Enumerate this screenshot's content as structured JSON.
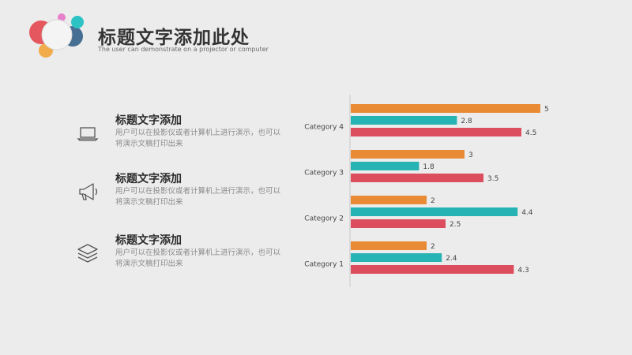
{
  "header": {
    "title": "标题文字添加此处",
    "subtitle": "The user can demonstrate on a projector or computer"
  },
  "items": [
    {
      "heading": "标题文字添加",
      "text": "用户可以在投影仪或者计算机上进行演示，也可以将演示文稿打印出来",
      "icon": "laptop-icon"
    },
    {
      "heading": "标题文字添加",
      "text": "用户可以在投影仪或者计算机上进行演示，也可以将演示文稿打印出来",
      "icon": "megaphone-icon"
    },
    {
      "heading": "标题文字添加",
      "text": "用户可以在投影仪或者计算机上进行演示，也可以将演示文稿打印出来",
      "icon": "layers-icon"
    }
  ],
  "colors": {
    "series_orange": "#e98a35",
    "series_teal": "#26b3b3",
    "series_red": "#dc4d5d",
    "logo_red": "#e3474f",
    "logo_teal": "#2dc3c5",
    "logo_orange": "#f2a43a",
    "logo_navy": "#35608a",
    "logo_pink": "#e86cc4"
  },
  "chart_data": {
    "type": "bar",
    "orientation": "horizontal",
    "categories": [
      "Category 1",
      "Category 2",
      "Category 3",
      "Category 4"
    ],
    "series": [
      {
        "values": [
          2,
          2,
          3,
          5
        ],
        "color": "#e98a35"
      },
      {
        "values": [
          2.4,
          4.4,
          1.8,
          2.8
        ],
        "color": "#26b3b3"
      },
      {
        "values": [
          4.3,
          2.5,
          3.5,
          4.5
        ],
        "color": "#dc4d5d"
      }
    ],
    "xlim": [
      0,
      5
    ],
    "grid": false,
    "legend": "none"
  }
}
